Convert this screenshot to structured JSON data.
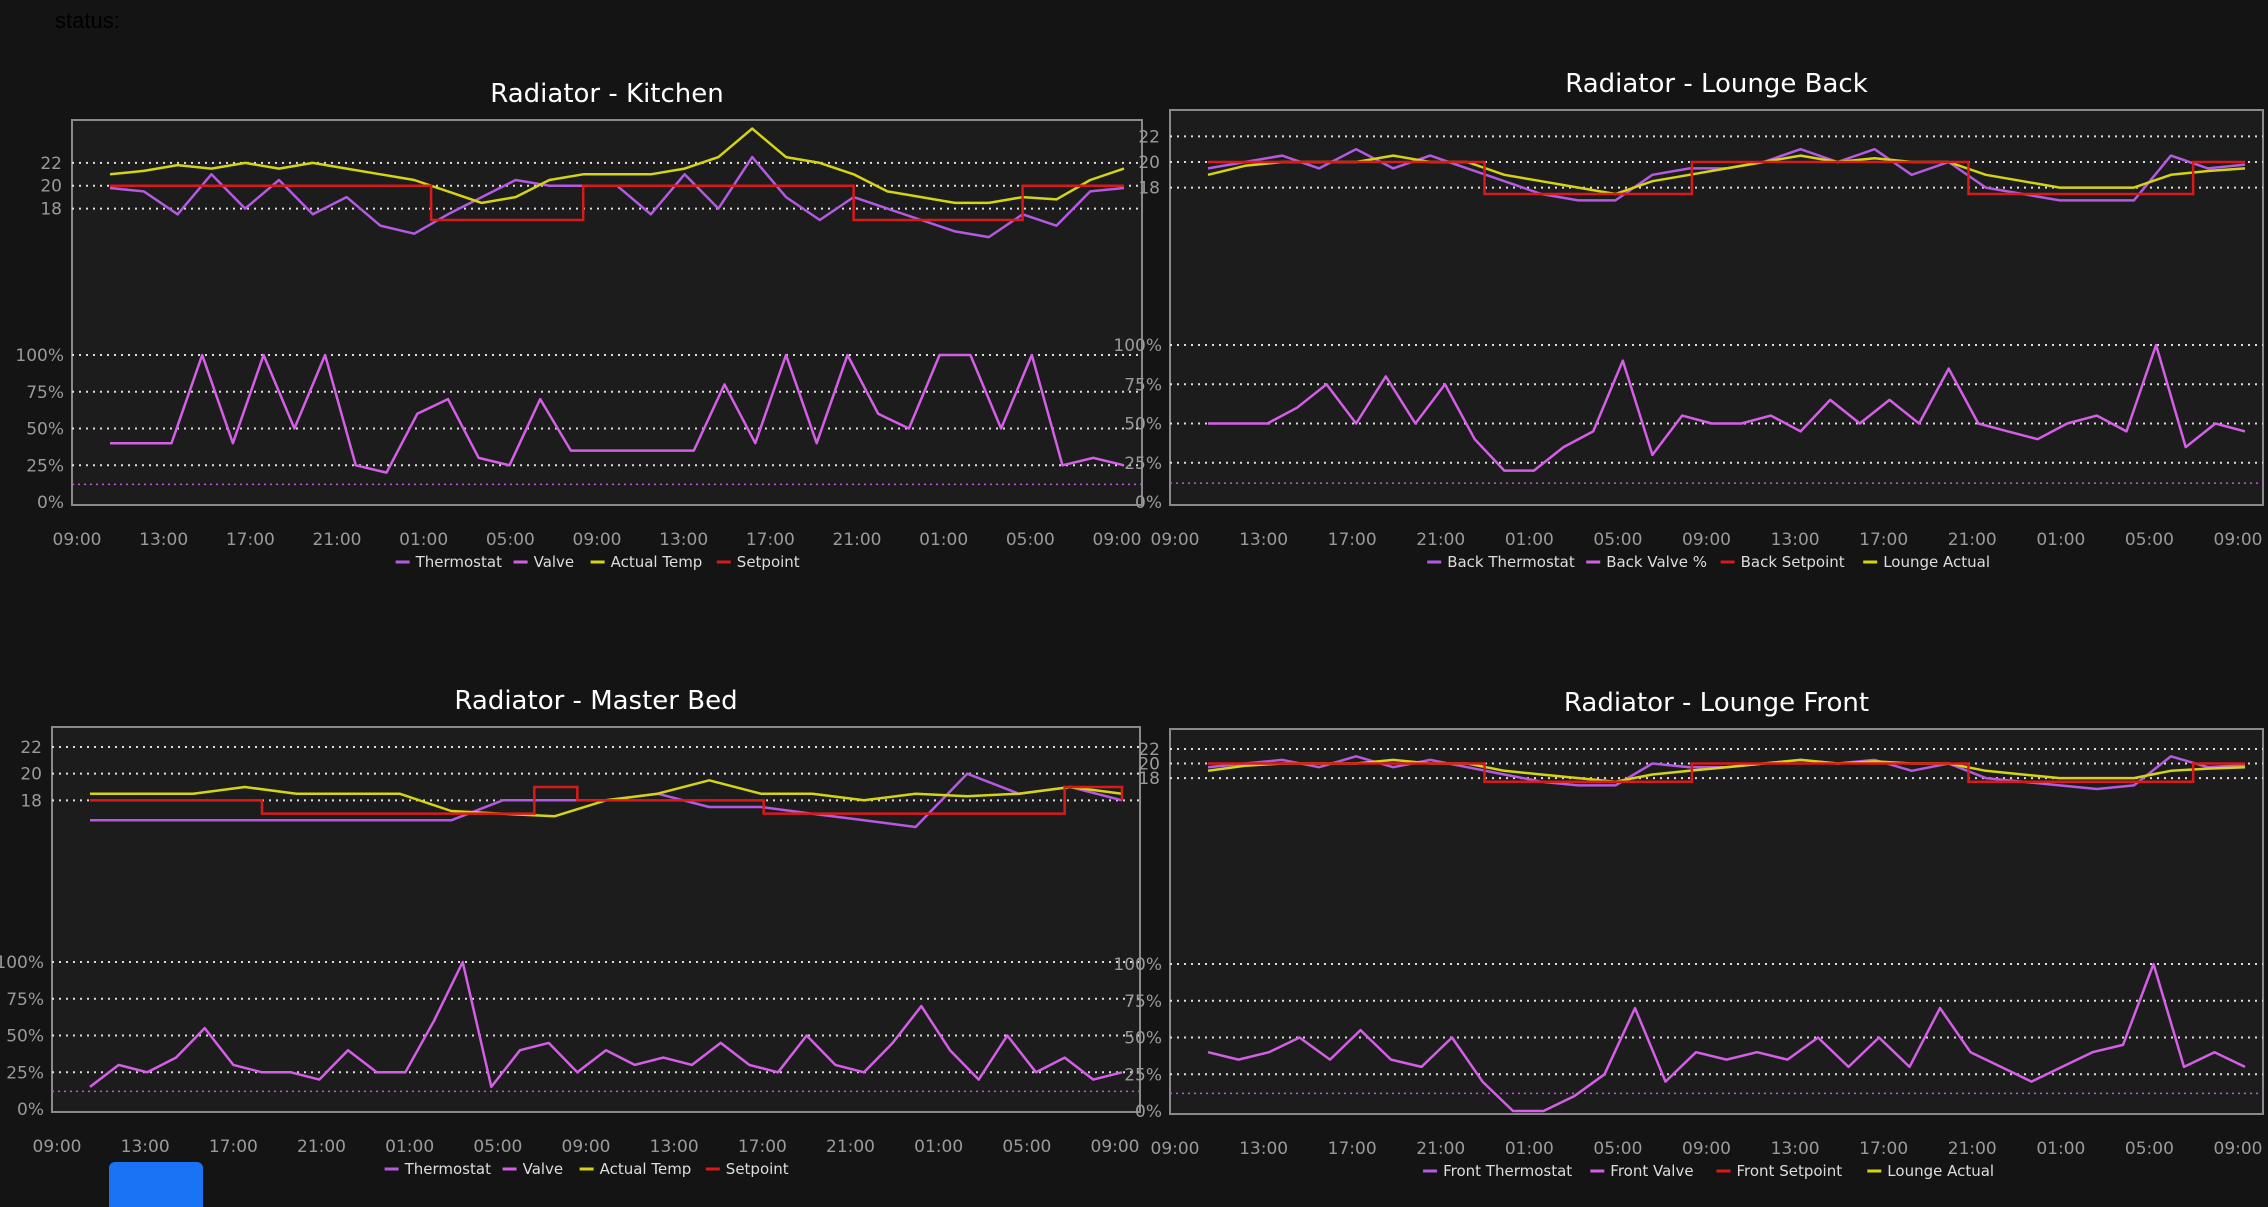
{
  "status_label": "status:",
  "colors": {
    "thermostat": "#b35ae0",
    "valve": "#d45fe6",
    "actual": "#d4d414",
    "setpoint": "#d71a1a",
    "grid": "#dddddd",
    "frame": "#8a8a8a",
    "background": "#1c1c1c"
  },
  "fab": {
    "icon": "blue-square-button"
  },
  "chart_data": [
    {
      "id": "kitchen",
      "type": "line",
      "title": "Radiator - Kitchen",
      "x_ticks": [
        "09:00",
        "13:00",
        "17:00",
        "21:00",
        "01:00",
        "05:00",
        "09:00",
        "13:00",
        "17:00",
        "21:00",
        "01:00",
        "05:00",
        "09:00"
      ],
      "temp_axis": {
        "ticks": [
          "22",
          "20",
          "18"
        ],
        "ylim": [
          10,
          24
        ]
      },
      "valve_axis": {
        "ticks": [
          "100%",
          "75%",
          "50%",
          "25%",
          "0%"
        ],
        "ylim": [
          0,
          100
        ]
      },
      "temp_series": [
        {
          "name": "Thermostat",
          "key": "thermostat",
          "values": [
            19.8,
            19.5,
            17.5,
            21,
            18,
            20.5,
            17.5,
            19,
            16.5,
            15.8,
            17.5,
            19,
            20.5,
            20,
            20,
            20,
            17.5,
            21,
            18,
            22.5,
            19,
            17,
            19,
            18,
            17,
            16,
            15.5,
            17.5,
            16.5,
            19.5,
            19.8
          ]
        },
        {
          "name": "Actual Temp",
          "key": "actual",
          "values": [
            21,
            21.3,
            21.8,
            21.5,
            22,
            21.5,
            22,
            21.5,
            21,
            20.5,
            19.5,
            18.5,
            19,
            20.5,
            21,
            21,
            21,
            21.5,
            22.5,
            25,
            22.5,
            22,
            21,
            19.5,
            19,
            18.5,
            18.5,
            19,
            18.8,
            20.5,
            21.5
          ]
        },
        {
          "name": "Setpoint",
          "key": "setpoint",
          "steps": [
            [
              0,
              20
            ],
            [
              9.5,
              17
            ],
            [
              14,
              20
            ],
            [
              22,
              17
            ],
            [
              27,
              20
            ],
            [
              30,
              20
            ]
          ]
        }
      ],
      "valve_series": [
        {
          "name": "Valve",
          "key": "valve",
          "values": [
            40,
            40,
            40,
            100,
            40,
            100,
            50,
            100,
            25,
            20,
            60,
            70,
            30,
            25,
            70,
            35,
            35,
            35,
            35,
            35,
            80,
            40,
            100,
            40,
            100,
            60,
            50,
            100,
            100,
            50,
            100,
            25,
            30,
            25
          ]
        }
      ],
      "legend": [
        "Thermostat",
        "Valve",
        "Actual Temp",
        "Setpoint"
      ],
      "legend_keys": [
        "thermostat",
        "valve",
        "actual",
        "setpoint"
      ]
    },
    {
      "id": "lounge-back",
      "type": "line",
      "title": "Radiator - Lounge Back",
      "x_ticks": [
        "09:00",
        "13:00",
        "17:00",
        "21:00",
        "01:00",
        "05:00",
        "09:00",
        "13:00",
        "17:00",
        "21:00",
        "01:00",
        "05:00",
        "09:00"
      ],
      "temp_axis": {
        "ticks": [
          "22",
          "20",
          "18"
        ],
        "ylim": [
          10,
          22.5
        ]
      },
      "valve_axis": {
        "ticks": [
          "100%",
          "75%",
          "50%",
          "25%",
          "0%"
        ],
        "ylim": [
          0,
          100
        ]
      },
      "temp_series": [
        {
          "name": "Back Thermostat",
          "key": "thermostat",
          "values": [
            19.5,
            20,
            20.5,
            19.5,
            21,
            19.5,
            20.5,
            19.5,
            18.5,
            17.5,
            17,
            17,
            19,
            19.5,
            19.5,
            20,
            21,
            20,
            21,
            19,
            20,
            18,
            17.5,
            17,
            17,
            17,
            20.5,
            19.5,
            19.8
          ]
        },
        {
          "name": "Lounge Actual",
          "key": "actual",
          "values": [
            19,
            19.7,
            20,
            20,
            20,
            20.5,
            20,
            20,
            19,
            18.5,
            18,
            17.5,
            18.5,
            19,
            19.5,
            20,
            20.5,
            20,
            20.3,
            20,
            20,
            19,
            18.5,
            18,
            18,
            18,
            19,
            19.3,
            19.5
          ]
        },
        {
          "name": "Back Setpoint",
          "key": "setpoint",
          "steps": [
            [
              0,
              20
            ],
            [
              8,
              17.5
            ],
            [
              14,
              20
            ],
            [
              22,
              17.5
            ],
            [
              28.5,
              20
            ],
            [
              30,
              20
            ]
          ]
        }
      ],
      "valve_series": [
        {
          "name": "Back Valve %",
          "key": "valve",
          "values": [
            50,
            50,
            50,
            60,
            75,
            50,
            80,
            50,
            75,
            40,
            20,
            20,
            35,
            45,
            90,
            30,
            55,
            50,
            50,
            55,
            45,
            65,
            50,
            65,
            50,
            85,
            50,
            45,
            40,
            50,
            55,
            45,
            100,
            35,
            50,
            45
          ]
        }
      ],
      "legend": [
        "Back Thermostat",
        "Back Valve %",
        "Back Setpoint",
        "Lounge Actual"
      ],
      "legend_keys": [
        "thermostat",
        "valve",
        "setpoint",
        "actual"
      ]
    },
    {
      "id": "master-bed",
      "type": "line",
      "title": "Radiator - Master Bed",
      "x_ticks": [
        "09:00",
        "13:00",
        "17:00",
        "21:00",
        "01:00",
        "05:00",
        "09:00",
        "13:00",
        "17:00",
        "21:00",
        "01:00",
        "05:00",
        "09:00"
      ],
      "temp_axis": {
        "ticks": [
          "22",
          "20",
          "18"
        ],
        "ylim": [
          10,
          22
        ]
      },
      "valve_axis": {
        "ticks": [
          "100%",
          "75%",
          "50%",
          "25%",
          "0%"
        ],
        "ylim": [
          0,
          100
        ]
      },
      "temp_series": [
        {
          "name": "Thermostat",
          "key": "thermostat",
          "values": [
            16.5,
            16.5,
            16.5,
            16.5,
            16.5,
            16.5,
            16.5,
            16.5,
            18,
            18,
            18,
            18.5,
            17.5,
            17.5,
            17,
            16.5,
            16,
            20,
            18.5,
            19,
            18
          ]
        },
        {
          "name": "Actual Temp",
          "key": "actual",
          "values": [
            18.5,
            18.5,
            18.5,
            19,
            18.5,
            18.5,
            18.5,
            17.2,
            17,
            16.8,
            18,
            18.5,
            19.5,
            18.5,
            18.5,
            18,
            18.5,
            18.3,
            18.5,
            19,
            18.5
          ]
        },
        {
          "name": "Setpoint",
          "key": "setpoint",
          "steps": [
            [
              0,
              18
            ],
            [
              6,
              17
            ],
            [
              15.5,
              19
            ],
            [
              17,
              18
            ],
            [
              23.5,
              17
            ],
            [
              34,
              19
            ],
            [
              36,
              18
            ]
          ]
        }
      ],
      "valve_series": [
        {
          "name": "Valve",
          "key": "valve",
          "values": [
            15,
            30,
            25,
            35,
            55,
            30,
            25,
            25,
            20,
            40,
            25,
            25,
            60,
            100,
            15,
            40,
            45,
            25,
            40,
            30,
            35,
            30,
            45,
            30,
            25,
            50,
            30,
            25,
            45,
            70,
            40,
            20,
            50,
            25,
            35,
            20,
            25
          ]
        }
      ],
      "legend": [
        "Thermostat",
        "Valve",
        "Actual Temp",
        "Setpoint"
      ],
      "legend_keys": [
        "thermostat",
        "valve",
        "actual",
        "setpoint"
      ]
    },
    {
      "id": "lounge-front",
      "type": "line",
      "title": "Radiator - Lounge Front",
      "x_ticks": [
        "09:00",
        "13:00",
        "17:00",
        "21:00",
        "01:00",
        "05:00",
        "09:00",
        "13:00",
        "17:00",
        "21:00",
        "01:00",
        "05:00",
        "09:00"
      ],
      "temp_axis": {
        "ticks": [
          "22",
          "20",
          "18"
        ],
        "ylim": [
          0,
          22
        ]
      },
      "valve_axis": {
        "ticks": [
          "100%",
          "75%",
          "50%",
          "25%",
          "0%"
        ],
        "ylim": [
          0,
          100
        ]
      },
      "temp_series": [
        {
          "name": "Front Thermostat",
          "key": "thermostat",
          "values": [
            19.5,
            20,
            20.5,
            19.5,
            21,
            19.5,
            20.5,
            19.5,
            18.5,
            17.5,
            17,
            17,
            20,
            19.5,
            19.5,
            20,
            20.5,
            20,
            20.5,
            19,
            20,
            18,
            17.5,
            17,
            16.5,
            17,
            21,
            19.5,
            19.8
          ]
        },
        {
          "name": "Lounge Actual",
          "key": "actual",
          "values": [
            19,
            19.7,
            20,
            20,
            20,
            20.5,
            20,
            20,
            19,
            18.5,
            18,
            17.5,
            18.5,
            19,
            19.5,
            20,
            20.5,
            20,
            20.3,
            20,
            20,
            19,
            18.5,
            18,
            18,
            18,
            19,
            19.3,
            19.5
          ]
        },
        {
          "name": "Front Setpoint",
          "key": "setpoint",
          "steps": [
            [
              0,
              20
            ],
            [
              8,
              17.5
            ],
            [
              14,
              20
            ],
            [
              22,
              17.5
            ],
            [
              28.5,
              20
            ],
            [
              30,
              20
            ]
          ]
        }
      ],
      "valve_series": [
        {
          "name": "Front Valve",
          "key": "valve",
          "values": [
            40,
            35,
            40,
            50,
            35,
            55,
            35,
            30,
            50,
            20,
            0,
            0,
            10,
            25,
            70,
            20,
            40,
            35,
            40,
            35,
            50,
            30,
            50,
            30,
            70,
            40,
            30,
            20,
            30,
            40,
            45,
            100,
            30,
            40,
            30
          ]
        }
      ],
      "legend": [
        "Front Thermostat",
        "Front Valve",
        "Front Setpoint",
        "Lounge Actual"
      ],
      "legend_keys": [
        "thermostat",
        "valve",
        "setpoint",
        "actual"
      ]
    }
  ]
}
